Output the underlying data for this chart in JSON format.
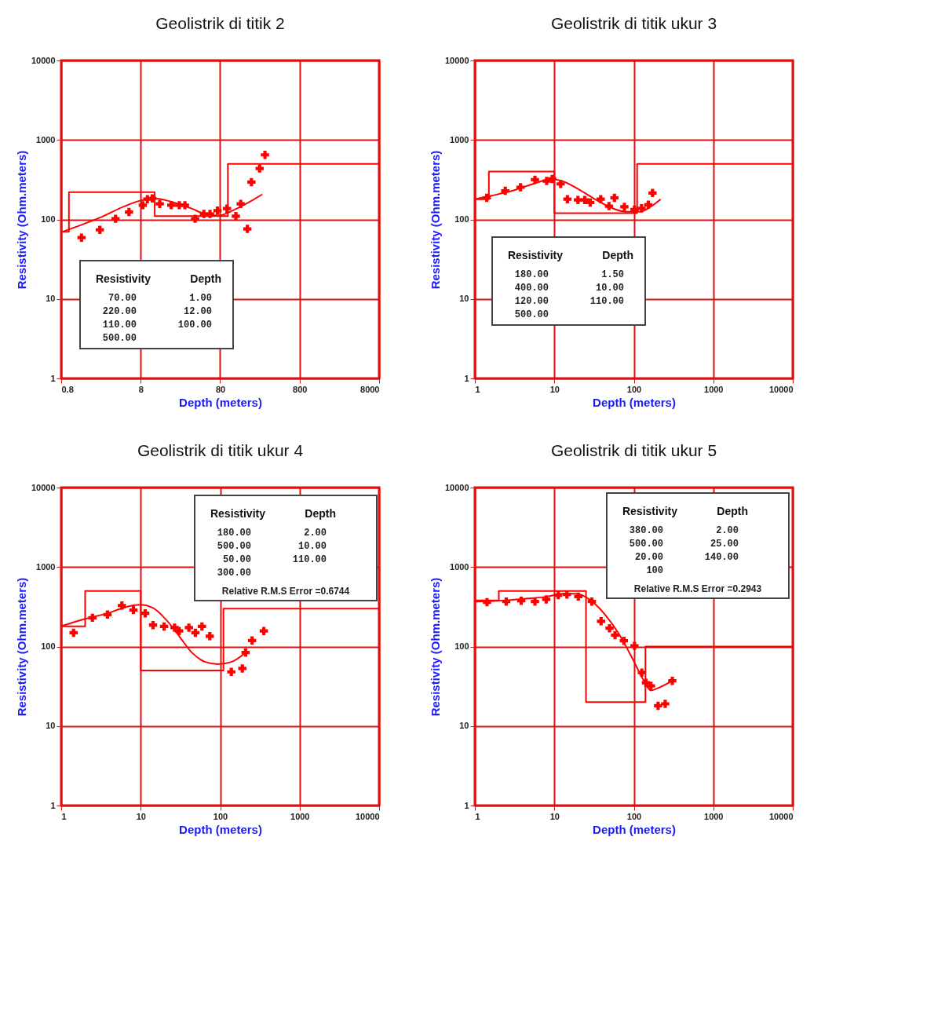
{
  "chart_data": [
    {
      "type": "scatter",
      "title": "Geolistrik di titik 2",
      "xlabel": "Depth (meters)",
      "ylabel": "Resistivity (Ohm.meters)",
      "log": "xy",
      "grid": true,
      "xlim": [
        0.8,
        8000
      ],
      "xticks": [
        0.8,
        8,
        80,
        800,
        8000
      ],
      "ylim": [
        1,
        10000
      ],
      "yticks": [
        1,
        10,
        100,
        1000,
        10000
      ],
      "annotations": [
        "Resistivity",
        "Depth",
        "70.00",
        "1.00",
        "220.00",
        "12.00",
        "110.00",
        "100.00",
        "500.00"
      ],
      "series": [
        {
          "marker": "cross",
          "color": "#ff0000",
          "x": [
            1.44,
            2.45,
            3.86,
            5.7,
            8.5,
            9.7,
            11.2,
            13.9,
            19.4,
            24.5,
            28.8,
            38.7,
            49.9,
            59.6,
            74,
            97.5,
            126,
            145,
            176,
            198,
            251,
            293
          ],
          "values": [
            59,
            74,
            102,
            124,
            151,
            180,
            184,
            157,
            151,
            151,
            151,
            102,
            117,
            117,
            129,
            137,
            110,
            157,
            76,
            295,
            438,
            649
          ]
        },
        {
          "type": "line",
          "color": "#ff0000",
          "x": [
            0.8,
            1.5,
            2.71,
            4.9,
            8.0,
            11.9,
            19.4,
            35,
            52,
            77,
            114,
            169,
            271
          ],
          "values": [
            69,
            87,
            110,
            145,
            173,
            184,
            167,
            137,
            117,
            112,
            129,
            157,
            207
          ]
        },
        {
          "type": "step",
          "color": "#ff0000",
          "x": [
            0.8,
            1,
            12,
            100,
            8000
          ],
          "values": [
            70,
            220,
            110,
            500,
            500
          ]
        }
      ]
    },
    {
      "type": "scatter",
      "title": "Geolistrik di titik ukur 3",
      "xlabel": "Depth (meters)",
      "ylabel": "Resistivity (Ohm.meters)",
      "log": "xy",
      "grid": true,
      "xlim": [
        1,
        10000
      ],
      "xticks": [
        1,
        10,
        100,
        1000,
        10000
      ],
      "ylim": [
        1,
        10000
      ],
      "yticks": [
        1,
        10,
        100,
        1000,
        10000
      ],
      "annotations": [
        "Resistivity",
        "Depth",
        "180.00",
        "1.50",
        "400.00",
        "10.00",
        "120.00",
        "110.00",
        "500.00"
      ],
      "series": [
        {
          "marker": "cross",
          "color": "#ff0000",
          "x": [
            1.41,
            2.41,
            3.75,
            5.7,
            8.0,
            9.4,
            12.0,
            14.6,
            19.8,
            24.1,
            28.3,
            38.3,
            48.7,
            57,
            76,
            102,
            125,
            152,
            172
          ],
          "values": [
            187,
            229,
            254,
            316,
            304,
            323,
            280,
            180,
            176,
            176,
            163,
            180,
            147,
            187,
            144,
            133,
            138,
            153,
            215
          ]
        },
        {
          "type": "line",
          "color": "#ff0000",
          "x": [
            1,
            1.62,
            2.95,
            5.4,
            9.4,
            13.2,
            21.8,
            36,
            54,
            80,
            120,
            162,
            218
          ],
          "values": [
            180,
            199,
            229,
            280,
            323,
            298,
            229,
            169,
            138,
            125,
            125,
            144,
            180
          ]
        },
        {
          "type": "step",
          "color": "#ff0000",
          "x": [
            1,
            1.5,
            10,
            110,
            10000
          ],
          "values": [
            180,
            400,
            120,
            500,
            500
          ]
        }
      ]
    },
    {
      "type": "scatter",
      "title": "Geolistrik di titik ukur 4",
      "xlabel": "Depth (meters)",
      "ylabel": "Resistivity (Ohm.meters)",
      "log": "xy",
      "grid": true,
      "xlim": [
        1,
        10000
      ],
      "xticks": [
        1,
        10,
        100,
        1000,
        10000
      ],
      "ylim": [
        1,
        10000
      ],
      "yticks": [
        1,
        10,
        100,
        1000,
        10000
      ],
      "annotations": [
        "Resistivity",
        "Depth",
        "180.00",
        "2.00",
        "500.00",
        "10.00",
        "50.00",
        "110.00",
        "300.00",
        "Relative R.M.S Error =0.6744"
      ],
      "series": [
        {
          "marker": "cross",
          "color": "#ff0000",
          "x": [
            1.43,
            2.47,
            3.82,
            5.8,
            8.1,
            11.4,
            14.3,
            19.7,
            26.7,
            30.5,
            40.4,
            48.8,
            59,
            74,
            138,
            190,
            209,
            252,
            354
          ],
          "values": [
            149,
            230,
            252,
            328,
            288,
            262,
            186,
            179,
            173,
            157,
            173,
            149,
            179,
            135,
            48,
            53,
            84,
            119,
            157
          ]
        },
        {
          "type": "line",
          "color": "#ff0000",
          "x": [
            1,
            1.8,
            3.8,
            6.7,
            9.8,
            14.3,
            20.9,
            30.5,
            44,
            65,
            94,
            138,
            209
          ],
          "values": [
            180,
            217,
            262,
            316,
            335,
            305,
            217,
            135,
            84,
            64,
            60,
            64,
            84
          ]
        },
        {
          "type": "step",
          "color": "#ff0000",
          "x": [
            1,
            2,
            10,
            110,
            10000
          ],
          "values": [
            180,
            500,
            50,
            300,
            300
          ]
        }
      ]
    },
    {
      "type": "scatter",
      "title": "Geolistrik di titik ukur 5",
      "xlabel": "Depth (meters)",
      "ylabel": "Resistivity (Ohm.meters)",
      "log": "xy",
      "grid": true,
      "xlim": [
        1,
        10000
      ],
      "xticks": [
        1,
        10,
        100,
        1000,
        10000
      ],
      "ylim": [
        1,
        10000
      ],
      "yticks": [
        1,
        10,
        100,
        1000,
        10000
      ],
      "annotations": [
        "Resistivity",
        "Depth",
        "380.00",
        "2.00",
        "500.00",
        "25.00",
        "20.00",
        "140.00",
        "100",
        "Relative R.M.S Error =0.2943"
      ],
      "series": [
        {
          "marker": "cross",
          "color": "#ff0000",
          "x": [
            1.42,
            2.48,
            3.83,
            5.7,
            7.9,
            11.2,
            14.4,
            20,
            29.6,
            38.7,
            49.5,
            58,
            75,
            102,
            126,
            142,
            164,
            202,
            248,
            305
          ],
          "values": [
            361,
            368,
            376,
            368,
            392,
            443,
            452,
            425,
            368,
            208,
            170,
            139,
            118,
            102,
            47,
            35,
            32,
            18,
            19,
            37
          ]
        },
        {
          "type": "line",
          "color": "#ff0000",
          "x": [
            1,
            1.94,
            4.4,
            8.2,
            12.4,
            18.8,
            28.4,
            43,
            65,
            98,
            134,
            164,
            202,
            305
          ],
          "values": [
            368,
            376,
            400,
            425,
            461,
            461,
            384,
            255,
            144,
            68,
            37,
            28,
            30,
            37
          ]
        },
        {
          "type": "step",
          "color": "#ff0000",
          "x": [
            1,
            2,
            25,
            140,
            10000
          ],
          "values": [
            380,
            500,
            20,
            100,
            100
          ]
        }
      ]
    }
  ]
}
